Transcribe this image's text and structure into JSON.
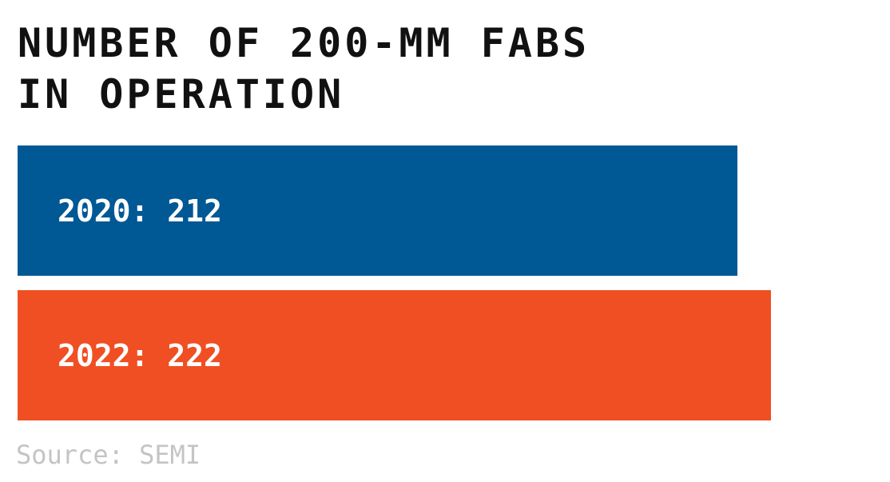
{
  "chart_data": {
    "type": "bar",
    "orientation": "horizontal",
    "title_lines": [
      "NUMBER OF 200-MM FABS",
      "IN OPERATION"
    ],
    "categories": [
      "2020",
      "2022"
    ],
    "values": [
      212,
      222
    ],
    "data_labels": [
      "2020: 212",
      "2022: 222"
    ],
    "colors": [
      "#005895",
      "#f04f23"
    ],
    "source": "Source: SEMI",
    "grid": false,
    "legend": "none"
  }
}
